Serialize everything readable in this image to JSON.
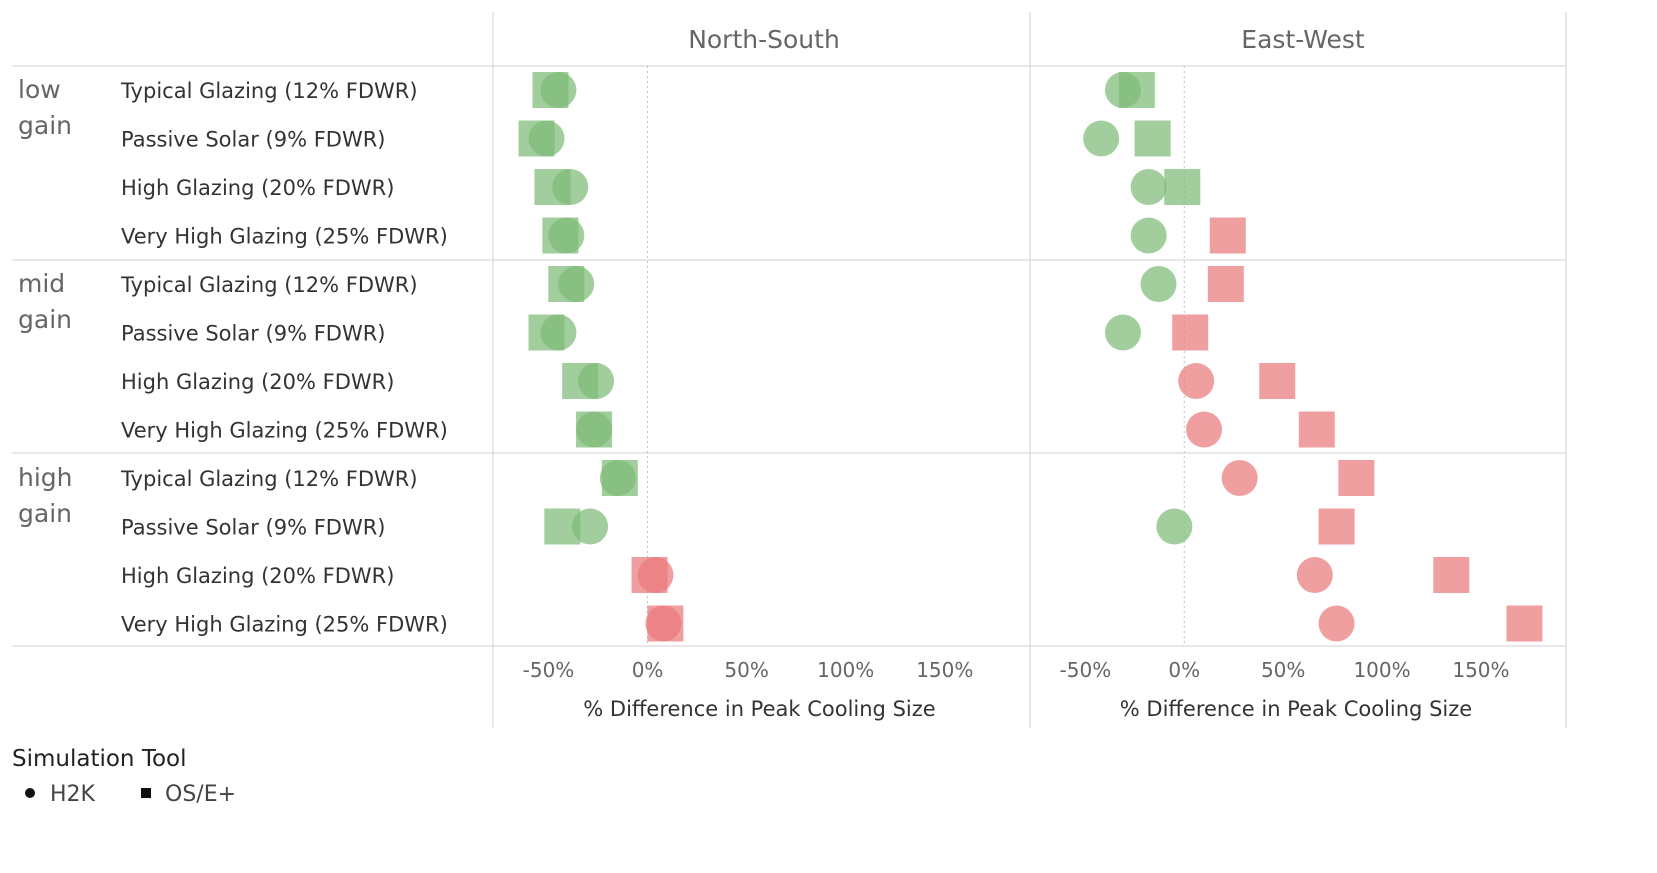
{
  "chart_data": {
    "type": "scatter",
    "panels": [
      "North-South",
      "East-West"
    ],
    "groups": [
      {
        "label_lines": [
          "low",
          "gain"
        ],
        "rows": [
          "Typical Glazing (12% FDWR)",
          "Passive Solar (9% FDWR)",
          "High Glazing (20% FDWR)",
          "Very High Glazing (25% FDWR)"
        ]
      },
      {
        "label_lines": [
          "mid",
          "gain"
        ],
        "rows": [
          "Typical Glazing (12% FDWR)",
          "Passive Solar (9% FDWR)",
          "High Glazing (20% FDWR)",
          "Very High Glazing (25% FDWR)"
        ]
      },
      {
        "label_lines": [
          "high",
          "gain"
        ],
        "rows": [
          "Typical Glazing (12% FDWR)",
          "Passive Solar (9% FDWR)",
          "High Glazing (20% FDWR)",
          "Very High Glazing (25% FDWR)"
        ]
      }
    ],
    "xlabel": "% Difference in Peak Cooling Size",
    "x_ticks": [
      "-50%",
      "0%",
      "50%",
      "100%",
      "150%"
    ],
    "x_tick_values": [
      -50,
      0,
      50,
      100,
      150
    ],
    "xlim": [
      -78,
      193
    ],
    "series": [
      {
        "name": "H2K",
        "shape": "circle",
        "values": {
          "North-South": [
            -45,
            -51,
            -39,
            -41,
            -36,
            -45,
            -26,
            -27,
            -15,
            -29,
            4,
            8
          ],
          "East-West": [
            -31,
            -42,
            -18,
            -18,
            -13,
            -31,
            6,
            10,
            28,
            -5,
            66,
            77
          ]
        }
      },
      {
        "name": "OS/E+",
        "shape": "square",
        "values": {
          "North-South": [
            -49,
            -56,
            -48,
            -44,
            -41,
            -51,
            -34,
            -27,
            -14,
            -43,
            1,
            9
          ],
          "East-West": [
            -24,
            -16,
            -1,
            22,
            21,
            3,
            47,
            67,
            87,
            77,
            135,
            172
          ]
        }
      }
    ],
    "colors": {
      "negative": "#7dbb76",
      "positive": "#ea7a7d"
    },
    "grid": {
      "zero_line": "dotted",
      "row_group_separators": true
    },
    "legend": {
      "title": "Simulation Tool",
      "entries": [
        "H2K",
        "OS/E+"
      ],
      "placement": "bottom-left"
    }
  }
}
